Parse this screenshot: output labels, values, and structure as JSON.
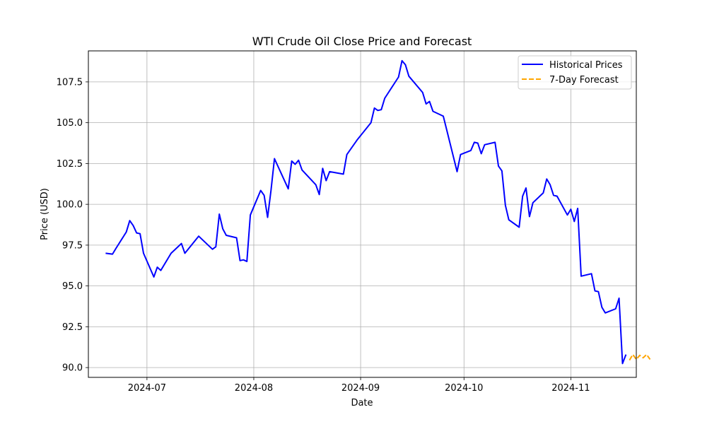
{
  "chart_data": {
    "type": "line",
    "title": "WTI Crude Oil Close Price and Forecast",
    "xlabel": "Date",
    "ylabel": "Price (USD)",
    "x_axis": "date",
    "xlim": [
      "2024-06-14",
      "2024-11-20"
    ],
    "ylim": [
      89.4,
      109.4
    ],
    "x_ticks": [
      "2024-07-01",
      "2024-08-01",
      "2024-09-01",
      "2024-10-01",
      "2024-11-01"
    ],
    "x_tick_labels": [
      "2024-07",
      "2024-08",
      "2024-09",
      "2024-10",
      "2024-11"
    ],
    "y_ticks": [
      90.0,
      92.5,
      95.0,
      97.5,
      100.0,
      102.5,
      105.0,
      107.5
    ],
    "y_tick_labels": [
      "90.0",
      "92.5",
      "95.0",
      "97.5",
      "100.0",
      "102.5",
      "105.0",
      "107.5"
    ],
    "grid": true,
    "legend": "upper-right",
    "series": [
      {
        "name": "Historical Prices",
        "color": "#0000ff",
        "style": "solid",
        "points": [
          [
            "2024-06-19",
            97.0
          ],
          [
            "2024-06-21",
            96.95
          ],
          [
            "2024-06-22",
            97.3
          ],
          [
            "2024-06-25",
            98.3
          ],
          [
            "2024-06-26",
            99.0
          ],
          [
            "2024-06-27",
            98.7
          ],
          [
            "2024-06-28",
            98.25
          ],
          [
            "2024-06-29",
            98.2
          ],
          [
            "2024-06-30",
            97.0
          ],
          [
            "2024-07-03",
            95.55
          ],
          [
            "2024-07-04",
            96.15
          ],
          [
            "2024-07-05",
            95.95
          ],
          [
            "2024-07-08",
            97.0
          ],
          [
            "2024-07-11",
            97.6
          ],
          [
            "2024-07-12",
            97.0
          ],
          [
            "2024-07-16",
            98.05
          ],
          [
            "2024-07-20",
            97.25
          ],
          [
            "2024-07-21",
            97.4
          ],
          [
            "2024-07-22",
            99.4
          ],
          [
            "2024-07-23",
            98.5
          ],
          [
            "2024-07-24",
            98.1
          ],
          [
            "2024-07-27",
            97.95
          ],
          [
            "2024-07-28",
            96.55
          ],
          [
            "2024-07-29",
            96.6
          ],
          [
            "2024-07-30",
            96.5
          ],
          [
            "2024-07-31",
            99.35
          ],
          [
            "2024-08-03",
            100.85
          ],
          [
            "2024-08-04",
            100.55
          ],
          [
            "2024-08-05",
            99.2
          ],
          [
            "2024-08-06",
            100.85
          ],
          [
            "2024-08-07",
            102.8
          ],
          [
            "2024-08-11",
            100.95
          ],
          [
            "2024-08-12",
            102.65
          ],
          [
            "2024-08-13",
            102.45
          ],
          [
            "2024-08-14",
            102.7
          ],
          [
            "2024-08-15",
            102.1
          ],
          [
            "2024-08-19",
            101.2
          ],
          [
            "2024-08-20",
            100.6
          ],
          [
            "2024-08-21",
            102.2
          ],
          [
            "2024-08-22",
            101.45
          ],
          [
            "2024-08-23",
            102.0
          ],
          [
            "2024-08-27",
            101.85
          ],
          [
            "2024-08-28",
            103.05
          ],
          [
            "2024-08-31",
            103.95
          ],
          [
            "2024-09-04",
            105.0
          ],
          [
            "2024-09-05",
            105.9
          ],
          [
            "2024-09-06",
            105.75
          ],
          [
            "2024-09-07",
            105.8
          ],
          [
            "2024-09-08",
            106.5
          ],
          [
            "2024-09-12",
            107.8
          ],
          [
            "2024-09-13",
            108.8
          ],
          [
            "2024-09-14",
            108.55
          ],
          [
            "2024-09-15",
            107.85
          ],
          [
            "2024-09-19",
            106.85
          ],
          [
            "2024-09-20",
            106.15
          ],
          [
            "2024-09-21",
            106.3
          ],
          [
            "2024-09-22",
            105.7
          ],
          [
            "2024-09-25",
            105.4
          ],
          [
            "2024-09-26",
            104.55
          ],
          [
            "2024-09-29",
            102.0
          ],
          [
            "2024-09-30",
            103.05
          ],
          [
            "2024-10-03",
            103.3
          ],
          [
            "2024-10-04",
            103.8
          ],
          [
            "2024-10-05",
            103.75
          ],
          [
            "2024-10-06",
            103.1
          ],
          [
            "2024-10-07",
            103.65
          ],
          [
            "2024-10-10",
            103.8
          ],
          [
            "2024-10-11",
            102.35
          ],
          [
            "2024-10-12",
            102.05
          ],
          [
            "2024-10-13",
            99.95
          ],
          [
            "2024-10-14",
            99.05
          ],
          [
            "2024-10-17",
            98.6
          ],
          [
            "2024-10-18",
            100.5
          ],
          [
            "2024-10-19",
            101.0
          ],
          [
            "2024-10-20",
            99.25
          ],
          [
            "2024-10-21",
            100.1
          ],
          [
            "2024-10-24",
            100.7
          ],
          [
            "2024-10-25",
            101.55
          ],
          [
            "2024-10-26",
            101.2
          ],
          [
            "2024-10-27",
            100.55
          ],
          [
            "2024-10-28",
            100.5
          ],
          [
            "2024-10-31",
            99.35
          ],
          [
            "2024-11-01",
            99.7
          ],
          [
            "2024-11-02",
            98.95
          ],
          [
            "2024-11-03",
            99.75
          ],
          [
            "2024-11-04",
            95.6
          ],
          [
            "2024-11-07",
            95.75
          ],
          [
            "2024-11-08",
            94.7
          ],
          [
            "2024-11-09",
            94.65
          ],
          [
            "2024-11-10",
            93.7
          ],
          [
            "2024-11-11",
            93.35
          ],
          [
            "2024-11-14",
            93.6
          ],
          [
            "2024-11-15",
            94.25
          ],
          [
            "2024-11-16",
            90.25
          ],
          [
            "2024-11-17",
            90.8
          ]
        ]
      },
      {
        "name": "7-Day Forecast",
        "color": "#ffa500",
        "style": "dashed",
        "points": [
          [
            "2024-11-18",
            90.45
          ],
          [
            "2024-11-19",
            90.8
          ],
          [
            "2024-11-20",
            90.5
          ],
          [
            "2024-11-21",
            90.75
          ],
          [
            "2024-11-22",
            90.6
          ],
          [
            "2024-11-23",
            90.8
          ],
          [
            "2024-11-24",
            90.5
          ]
        ]
      }
    ]
  }
}
